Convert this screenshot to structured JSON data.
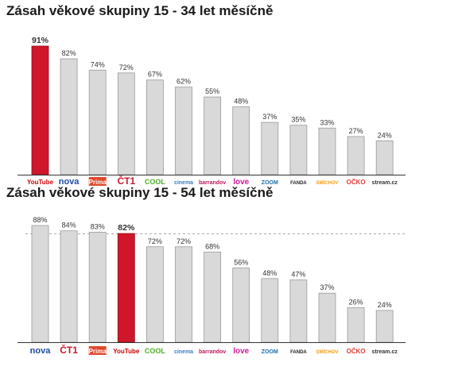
{
  "colors": {
    "bar": "#d9d9d9",
    "bar_stroke": "#9a9a9a",
    "highlight": "#d0162a",
    "highlight_stroke": "#8f0d1a",
    "baseline": "#333333"
  },
  "chart_data": [
    {
      "type": "bar",
      "title": "Zásah věkové skupiny 15 - 34 let měsíčně",
      "categories": [
        "YouTube",
        "nova",
        "Prima",
        "ČT1",
        "COOL",
        "cinema",
        "barrandov",
        "love",
        "ZOOM",
        "FANDA",
        "SMÍCHOV",
        "OČKO",
        "stream.cz"
      ],
      "values": [
        91,
        82,
        74,
        72,
        67,
        62,
        55,
        48,
        37,
        35,
        33,
        27,
        24
      ],
      "value_labels": [
        "91%",
        "82%",
        "74%",
        "72%",
        "67%",
        "62%",
        "55%",
        "48%",
        "37%",
        "35%",
        "33%",
        "27%",
        "24%"
      ],
      "highlight": "YouTube",
      "ylim": [
        0,
        100
      ],
      "grid": false
    },
    {
      "type": "bar",
      "title": "Zásah věkové skupiny 15 - 54 let měsíčně",
      "categories": [
        "nova",
        "ČT1",
        "Prima",
        "YouTube",
        "COOL",
        "cinema",
        "barrandov",
        "love",
        "ZOOM",
        "FANDA",
        "SMÍCHOV",
        "OČKO",
        "stream.cz"
      ],
      "values": [
        88,
        84,
        83,
        82,
        72,
        72,
        68,
        56,
        48,
        47,
        37,
        26,
        24
      ],
      "value_labels": [
        "88%",
        "84%",
        "83%",
        "82%",
        "72%",
        "72%",
        "68%",
        "56%",
        "48%",
        "47%",
        "37%",
        "26%",
        "24%"
      ],
      "highlight": "YouTube",
      "reference_line": 82,
      "ylim": [
        0,
        100
      ],
      "grid": false
    }
  ]
}
